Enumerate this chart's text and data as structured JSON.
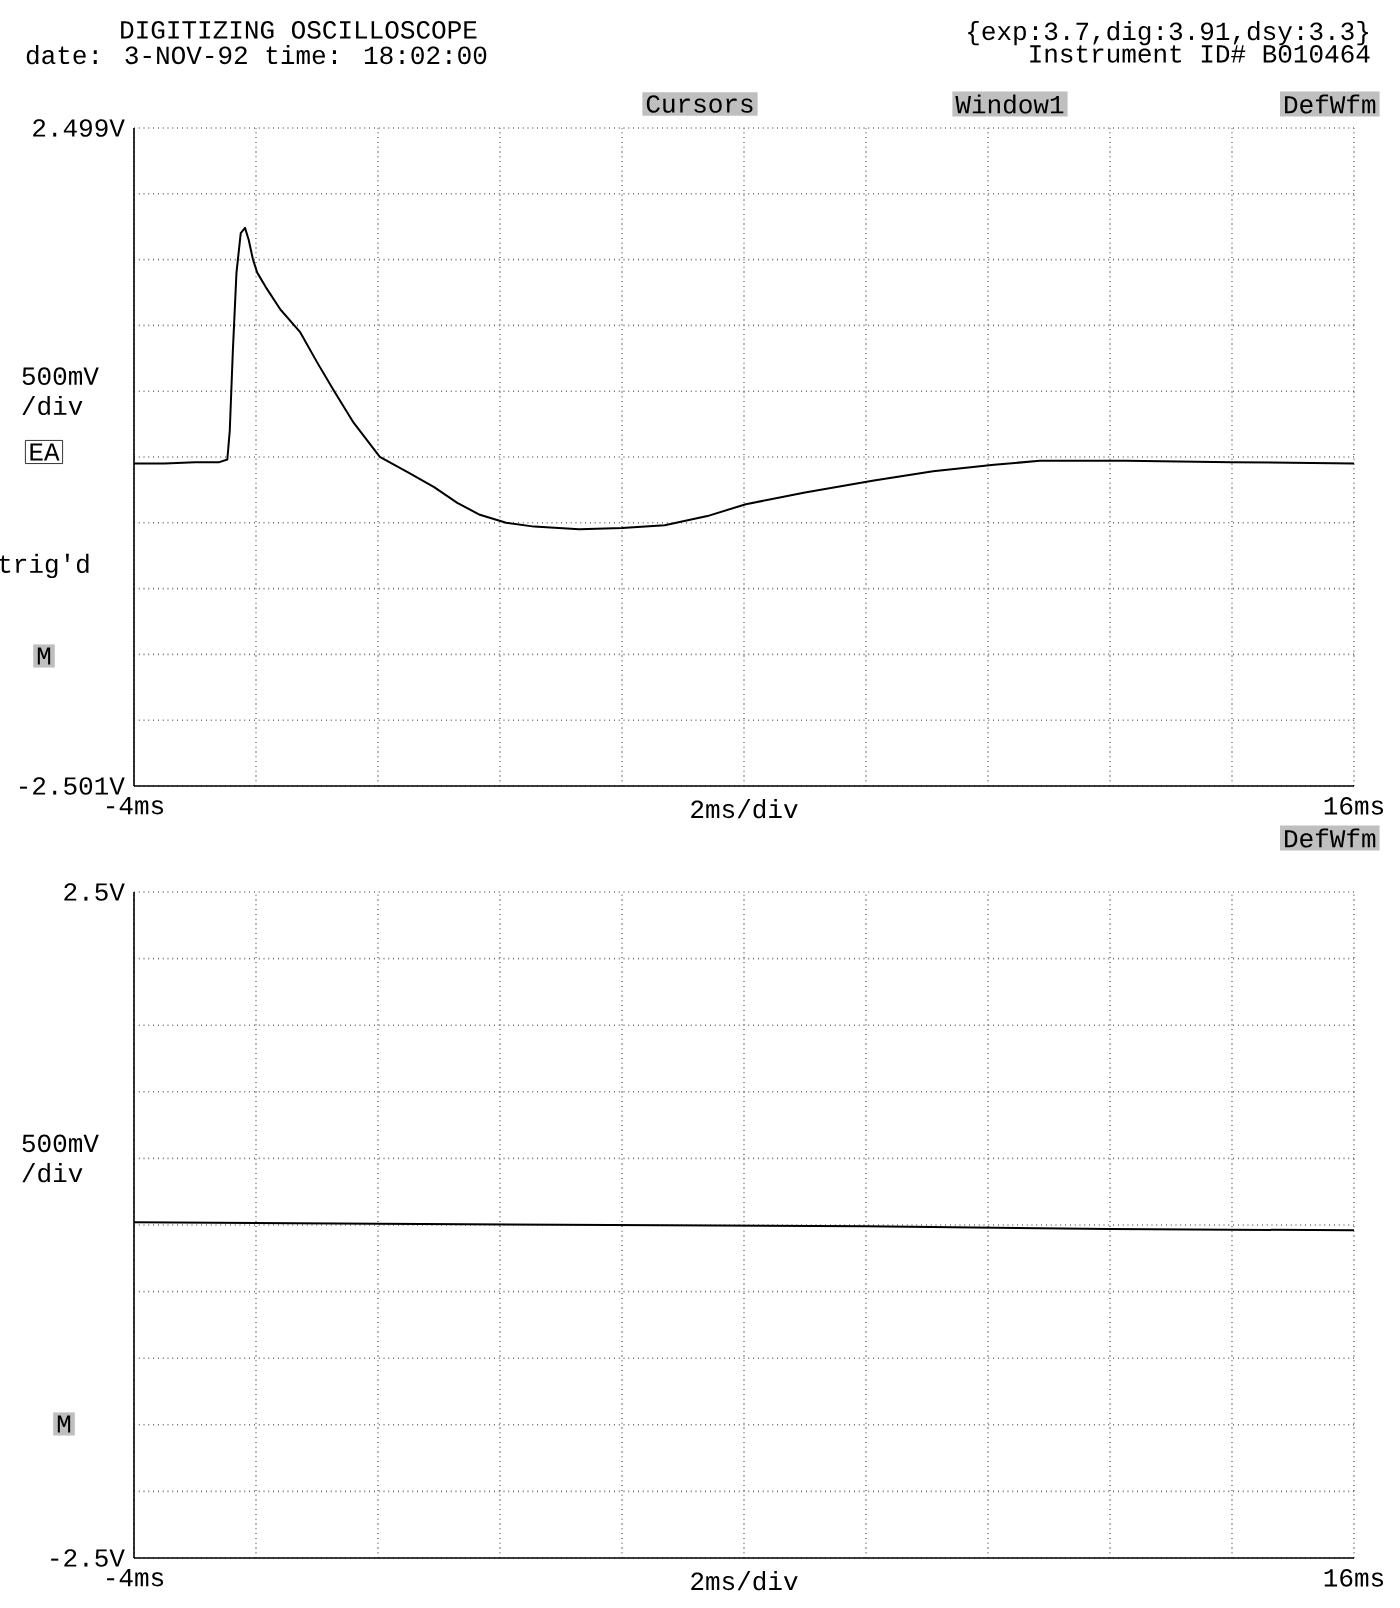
{
  "chart_data": [
    {
      "type": "line",
      "xlabel": "2ms/div",
      "ylabel": "500mV /div",
      "annotations": [
        "DIGITIZING OSCILLOSCOPE",
        "date: 3-NOV-92 time: 18:02:00",
        "{exp:3.7,dig:3.91,dsy:3.3}",
        "Instrument ID# B010464",
        "Cursors",
        "Window1",
        "DefWfm",
        "EA",
        "trig'd",
        "M"
      ],
      "xlim": [
        -4,
        16
      ],
      "ylim": [
        -2.501,
        2.499
      ],
      "xticks": [
        {
          "value": -4,
          "label": "-4ms"
        },
        {
          "value": -2,
          "label": null
        },
        {
          "value": 0,
          "label": null
        },
        {
          "value": 2,
          "label": null
        },
        {
          "value": 4,
          "label": null
        },
        {
          "value": 6,
          "label": null
        },
        {
          "value": 8,
          "label": null
        },
        {
          "value": 10,
          "label": null
        },
        {
          "value": 12,
          "label": null
        },
        {
          "value": 14,
          "label": null
        },
        {
          "value": 16,
          "label": "16ms"
        }
      ],
      "yticks": [
        {
          "value": -2.501,
          "label": "-2.501V"
        },
        {
          "value": -2.001,
          "label": null
        },
        {
          "value": -1.501,
          "label": null
        },
        {
          "value": -1.001,
          "label": null
        },
        {
          "value": -0.501,
          "label": null
        },
        {
          "value": -0.001,
          "label": null
        },
        {
          "value": 0.499,
          "label": null
        },
        {
          "value": 0.999,
          "label": null
        },
        {
          "value": 1.499,
          "label": null
        },
        {
          "value": 1.999,
          "label": null
        },
        {
          "value": 2.499,
          "label": "2.499V"
        }
      ],
      "grid": true,
      "series": [
        {
          "color": "#000000",
          "x": [
            -4,
            -3.5,
            -3,
            -2.6,
            -2.47,
            -2.43,
            -2.38,
            -2.32,
            -2.25,
            -2.18,
            -2.12,
            -2.05,
            -1.98,
            -1.84,
            -1.6,
            -1.28,
            -1,
            -0.72,
            -0.4,
            0.03,
            0.5,
            0.92,
            1.3,
            1.67,
            2.1,
            2.56,
            3.3,
            4,
            4.7,
            5.4,
            6.03,
            7,
            8.13,
            9.1,
            10.1,
            10.85,
            12.26,
            14,
            16
          ],
          "values": [
            -0.05,
            -0.05,
            -0.04,
            -0.04,
            -0.02,
            0.2,
            0.8,
            1.4,
            1.7,
            1.74,
            1.65,
            1.5,
            1.4,
            1.29,
            1.12,
            0.95,
            0.72,
            0.5,
            0.26,
            0.0,
            -0.12,
            -0.23,
            -0.35,
            -0.44,
            -0.5,
            -0.53,
            -0.55,
            -0.54,
            -0.52,
            -0.45,
            -0.36,
            -0.27,
            -0.18,
            -0.11,
            -0.06,
            -0.03,
            -0.03,
            -0.04,
            -0.05
          ]
        }
      ]
    },
    {
      "type": "line",
      "xlabel": "2ms/div",
      "ylabel": "500mV /div",
      "annotations": [
        "DefWfm",
        "M"
      ],
      "xlim": [
        -4,
        16
      ],
      "ylim": [
        -2.5,
        2.5
      ],
      "xticks": [
        {
          "value": -4,
          "label": "-4ms"
        },
        {
          "value": -2,
          "label": null
        },
        {
          "value": 0,
          "label": null
        },
        {
          "value": 2,
          "label": null
        },
        {
          "value": 4,
          "label": null
        },
        {
          "value": 6,
          "label": null
        },
        {
          "value": 8,
          "label": null
        },
        {
          "value": 10,
          "label": null
        },
        {
          "value": 12,
          "label": null
        },
        {
          "value": 14,
          "label": null
        },
        {
          "value": 16,
          "label": "16ms"
        }
      ],
      "yticks": [
        {
          "value": -2.5,
          "label": "-2.5V"
        },
        {
          "value": -2,
          "label": null
        },
        {
          "value": -1.5,
          "label": null
        },
        {
          "value": -1,
          "label": null
        },
        {
          "value": -0.5,
          "label": null
        },
        {
          "value": 0,
          "label": null
        },
        {
          "value": 0.5,
          "label": null
        },
        {
          "value": 1,
          "label": null
        },
        {
          "value": 1.5,
          "label": null
        },
        {
          "value": 2,
          "label": null
        },
        {
          "value": 2.5,
          "label": "2.5V"
        }
      ],
      "grid": true,
      "series": [
        {
          "color": "#000000",
          "x": [
            -4,
            0,
            4,
            8,
            12,
            16
          ],
          "values": [
            0.02,
            0.01,
            0.0,
            -0.01,
            -0.03,
            -0.04
          ]
        }
      ]
    }
  ]
}
